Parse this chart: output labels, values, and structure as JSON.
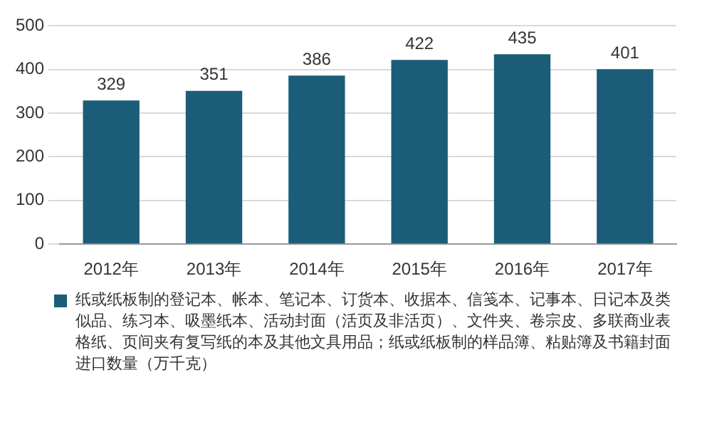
{
  "chart_data": {
    "type": "bar",
    "categories": [
      "2012年",
      "2013年",
      "2014年",
      "2015年",
      "2016年",
      "2017年"
    ],
    "series": [
      {
        "name": "纸或纸板制的登记本、帐本、笔记本、订货本、收据本、信笺本、记事本、日记本及类似品、练习本、吸墨纸本、活动封面（活页及非活页）、文件夹、卷宗皮、多联商业表格纸、页间夹有复写纸的本及其他文具用品；纸或纸板制的样品簿、粘贴簿及书籍封面进口数量（万千克）",
        "color": "#1b5d78",
        "values": [
          329,
          351,
          386,
          422,
          435,
          401
        ]
      }
    ],
    "ylim": [
      0,
      500
    ],
    "yticks": [
      0,
      100,
      200,
      300,
      400,
      500
    ],
    "grid": "y",
    "data_labels": true,
    "legend": "bottom"
  }
}
